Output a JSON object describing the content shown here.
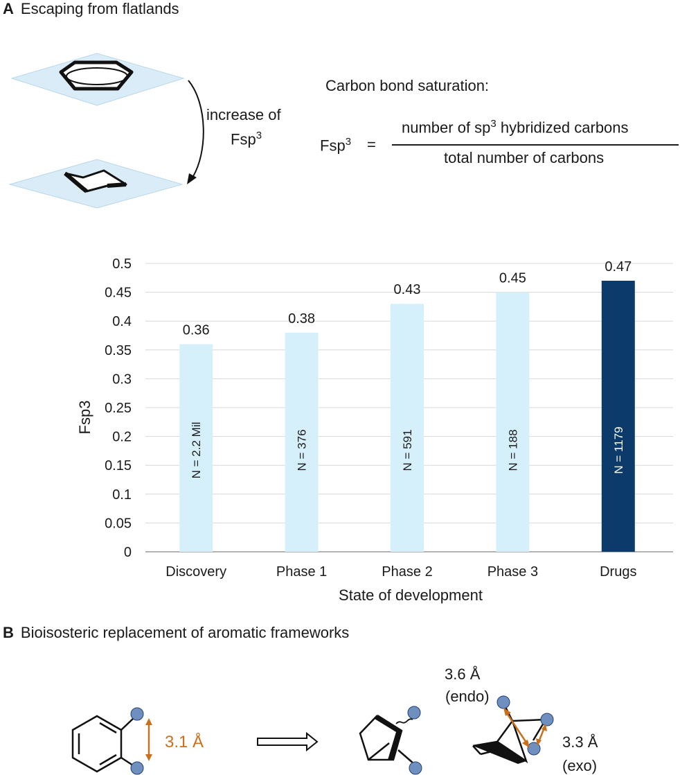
{
  "panelA": {
    "letter": "A",
    "title": "Escaping from flatlands",
    "arrow_label_line1": "increase of",
    "arrow_label_line2_base": "Fsp",
    "arrow_label_line2_sup": "3",
    "formula_heading": "Carbon bond saturation:",
    "formula_lhs_base": "Fsp",
    "formula_lhs_sup": "3",
    "formula_equals": "=",
    "numerator_pre": "number of sp",
    "numerator_sup": "3",
    "numerator_post": " hybridized carbons",
    "denominator": "total number of carbons"
  },
  "chart_data": {
    "type": "bar",
    "categories": [
      "Discovery",
      "Phase 1",
      "Phase 2",
      "Phase 3",
      "Drugs"
    ],
    "values": [
      0.36,
      0.38,
      0.43,
      0.45,
      0.47
    ],
    "value_labels": [
      "0.36",
      "0.38",
      "0.43",
      "0.45",
      "0.47"
    ],
    "n_labels": [
      "N = 2.2 Mil",
      "N = 376",
      "N = 591",
      "N = 188",
      "N = 1179"
    ],
    "bar_colors": [
      "#d6f0fb",
      "#d6f0fb",
      "#d6f0fb",
      "#d6f0fb",
      "#0c3a6b"
    ],
    "xlabel": "State of development",
    "ylabel": "Fsp3",
    "ylim": [
      0,
      0.5
    ],
    "yticks": [
      "0",
      "0.05",
      "0.1",
      "0.15",
      "0.2",
      "0.25",
      "0.3",
      "0.35",
      "0.4",
      "0.45",
      "0.5"
    ],
    "grid": true
  },
  "panelB": {
    "letter": "B",
    "title": "Bioisosteric replacement of aromatic frameworks",
    "dist_ortho": "3.1 Å",
    "dist_endo": "3.6 Å",
    "endo_label": "(endo)",
    "dist_exo": "3.3 Å",
    "exo_label": "(exo)"
  },
  "colors": {
    "accent_orange": "#c8701e",
    "plane_blue": "#d9ecf8",
    "ball_blue": "#6e8fc0"
  }
}
